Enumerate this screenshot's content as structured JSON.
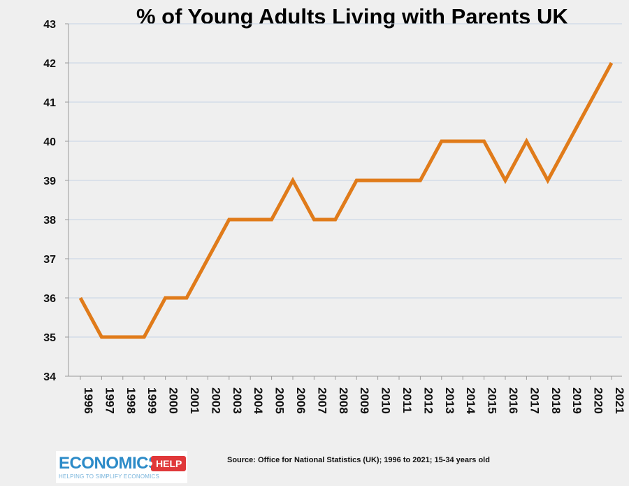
{
  "chart_data": {
    "type": "line",
    "title": "% of Young Adults Living with Parents UK",
    "xlabel": "",
    "ylabel": "",
    "x": [
      "1996",
      "1997",
      "1998",
      "1999",
      "2000",
      "2001",
      "2002",
      "2003",
      "2004",
      "2005",
      "2006",
      "2007",
      "2008",
      "2009",
      "2010",
      "2011",
      "2012",
      "2013",
      "2014",
      "2015",
      "2016",
      "2017",
      "2018",
      "2019",
      "2020",
      "2021"
    ],
    "series": [
      {
        "values": [
          36,
          35,
          35,
          35,
          36,
          36,
          37,
          38,
          38,
          38,
          39,
          38,
          38,
          39,
          39,
          39,
          39,
          40,
          40,
          40,
          39,
          40,
          39,
          40,
          41,
          42
        ]
      }
    ],
    "ylim": [
      34,
      43
    ],
    "yticks": [
      34,
      35,
      36,
      37,
      38,
      39,
      40,
      41,
      42,
      43
    ],
    "grid": true,
    "line_color": "#e07b1a",
    "gridline_color": "#c5d3e6"
  },
  "footer": {
    "source": "Source: Office for National Statistics (UK); 1996 to 2021; 15-34 years old",
    "logo_main": "ECONOMICS",
    "logo_tag": "HELP",
    "logo_sub": "HELPING TO SIMPLIFY ECONOMICS"
  }
}
